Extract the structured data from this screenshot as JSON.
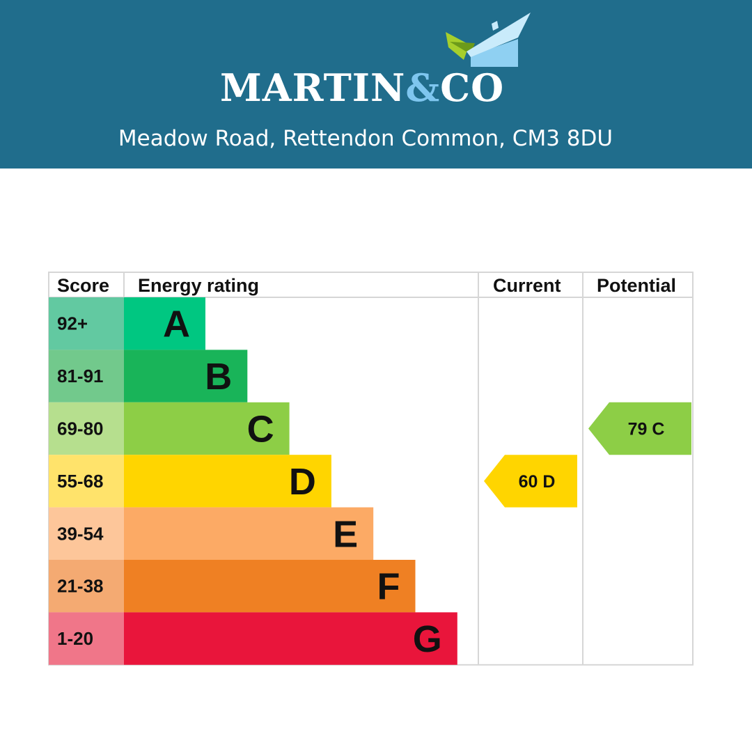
{
  "brand": {
    "name_part1": "MARTIN",
    "name_amp": "&",
    "name_part2": "CO",
    "header_color": "#206d8c"
  },
  "address": "Meadow Road, Rettendon Common, CM3 8DU",
  "chart_data": {
    "type": "table",
    "columns": [
      "Score",
      "Energy rating",
      "Current",
      "Potential"
    ],
    "bands": [
      {
        "score": "92+",
        "letter": "A",
        "color": "#00c781",
        "score_bg": "#62c9a1"
      },
      {
        "score": "81-91",
        "letter": "B",
        "color": "#19b459",
        "score_bg": "#72c98c"
      },
      {
        "score": "69-80",
        "letter": "C",
        "color": "#8dce46",
        "score_bg": "#b6df8e"
      },
      {
        "score": "55-68",
        "letter": "D",
        "color": "#ffd500",
        "score_bg": "#ffe36b"
      },
      {
        "score": "39-54",
        "letter": "E",
        "color": "#fcaa65",
        "score_bg": "#fdc69a"
      },
      {
        "score": "21-38",
        "letter": "F",
        "color": "#ef8023",
        "score_bg": "#f4aa72"
      },
      {
        "score": "1-20",
        "letter": "G",
        "color": "#e9153b",
        "score_bg": "#f07689"
      }
    ],
    "current": {
      "value": 60,
      "letter": "D",
      "label": "60  D",
      "color": "#ffd500"
    },
    "potential": {
      "value": 79,
      "letter": "C",
      "label": "79  C",
      "color": "#8dce46"
    }
  }
}
